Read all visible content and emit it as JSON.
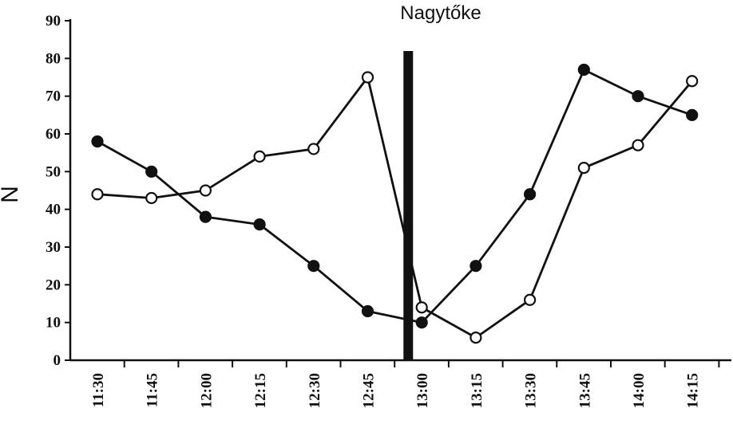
{
  "chart_data": {
    "type": "line",
    "title": "Nagytőke",
    "xlabel": "",
    "ylabel": "N",
    "categories": [
      "11:30",
      "11:45",
      "12:00",
      "12:15",
      "12:30",
      "12:45",
      "13:00",
      "13:15",
      "13:30",
      "13:45",
      "14:00",
      "14:15"
    ],
    "ylim": [
      0,
      90
    ],
    "yticks": [
      "0",
      "10",
      "20",
      "30",
      "40",
      "50",
      "60",
      "70",
      "80",
      "90"
    ],
    "series": [
      {
        "name": "filled",
        "marker": "filled-circle",
        "values": [
          58,
          50,
          38,
          36,
          25,
          13,
          10,
          25,
          44,
          77,
          70,
          65
        ]
      },
      {
        "name": "open",
        "marker": "open-circle",
        "values": [
          44,
          43,
          45,
          54,
          56,
          75,
          14,
          6,
          16,
          51,
          57,
          74
        ]
      }
    ],
    "event_marker": {
      "label": "",
      "x_value": 12.88,
      "description": "thick vertical bar between 12:45 and 13:00"
    },
    "grid": false,
    "legend": "none"
  },
  "colors": {
    "line": "#111111",
    "marker_fill_filled": "#111111",
    "marker_fill_open": "#ffffff",
    "bar": "#111111"
  }
}
